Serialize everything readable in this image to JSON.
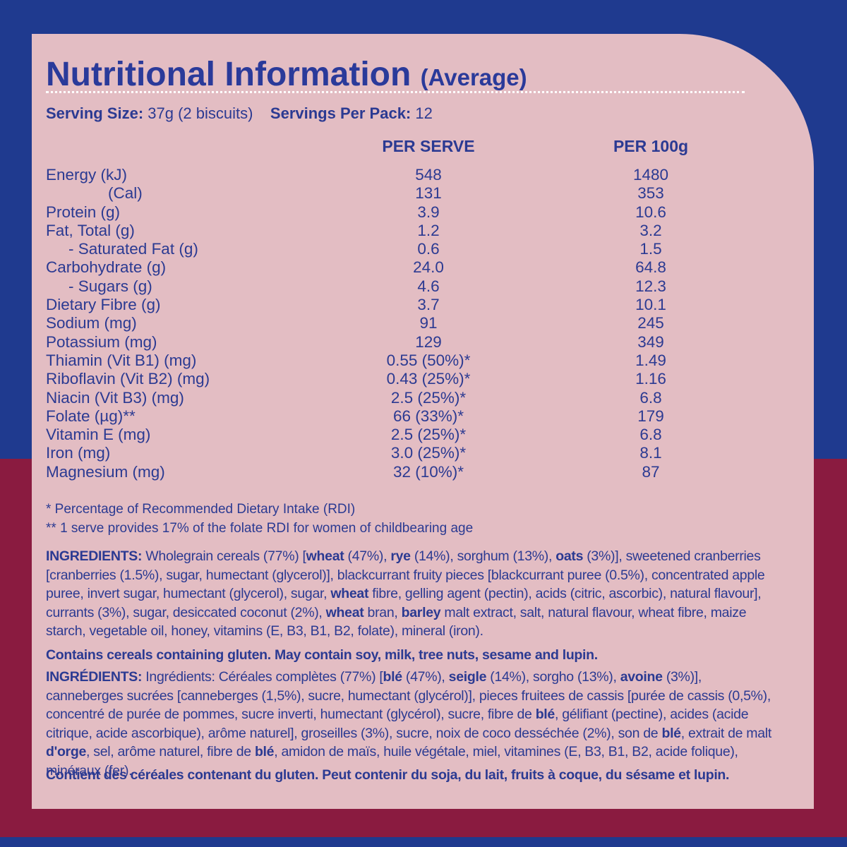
{
  "title": {
    "main": "Nutritional Information",
    "sub": "(Average)"
  },
  "serving": {
    "size_label": "Serving Size:",
    "size_value": "37g (2 biscuits)",
    "pack_label": "Servings Per Pack:",
    "pack_value": "12"
  },
  "columns": {
    "per_serve": "PER SERVE",
    "per_100g": "PER 100g"
  },
  "rows": [
    {
      "label": "Energy (kJ)",
      "serve": "548",
      "per100": "1480"
    },
    {
      "label": "(Cal)",
      "serve": "131",
      "per100": "353"
    },
    {
      "label": "Protein (g)",
      "serve": "3.9",
      "per100": "10.6"
    },
    {
      "label": "Fat, Total (g)",
      "serve": "1.2",
      "per100": "3.2"
    },
    {
      "label": "- Saturated Fat (g)",
      "serve": "0.6",
      "per100": "1.5"
    },
    {
      "label": "Carbohydrate (g)",
      "serve": "24.0",
      "per100": "64.8"
    },
    {
      "label": "- Sugars (g)",
      "serve": "4.6",
      "per100": "12.3"
    },
    {
      "label": "Dietary Fibre (g)",
      "serve": "3.7",
      "per100": "10.1"
    },
    {
      "label": "Sodium (mg)",
      "serve": "91",
      "per100": "245"
    },
    {
      "label": "Potassium (mg)",
      "serve": "129",
      "per100": "349"
    },
    {
      "label": "Thiamin (Vit B1) (mg)",
      "serve": "0.55 (50%)*",
      "per100": "1.49"
    },
    {
      "label": "Riboflavin (Vit B2) (mg)",
      "serve": "0.43 (25%)*",
      "per100": "1.16"
    },
    {
      "label": "Niacin (Vit B3) (mg)",
      "serve": "2.5 (25%)*",
      "per100": "6.8"
    },
    {
      "label": "Folate (µg)**",
      "serve": "66 (33%)*",
      "per100": "179"
    },
    {
      "label": "Vitamin E (mg)",
      "serve": "2.5 (25%)*",
      "per100": "6.8"
    },
    {
      "label": "Iron (mg)",
      "serve": "3.0 (25%)*",
      "per100": "8.1"
    },
    {
      "label": "Magnesium (mg)",
      "serve": "32 (10%)*",
      "per100": "87"
    }
  ],
  "footnotes": [
    "* Percentage of Recommended Dietary Intake (RDI)",
    "** 1 serve provides 17% of the folate RDI for women of childbearing age"
  ],
  "ingredients_en": {
    "label": "INGREDIENTS:",
    "t1": " Wholegrain cereals (77%) [",
    "b1": "wheat",
    "t2": " (47%), ",
    "b2": "rye",
    "t3": " (14%), sorghum (13%), ",
    "b3": "oats",
    "t4": " (3%)], sweetened cranberries [cranberries (1.5%), sugar, humectant (glycerol)], blackcurrant fruity pieces [blackcurrant puree (0.5%), concentrated apple puree, invert sugar, humectant (glycerol), sugar, ",
    "b4": "wheat",
    "t5": " fibre, gelling agent (pectin), acids (citric, ascorbic), natural flavour], currants (3%), sugar, desiccated coconut (2%), ",
    "b5": "wheat",
    "t6": " bran, ",
    "b6": "barley",
    "t7": " malt extract, salt, natural flavour, wheat fibre, maize starch, vegetable oil, honey, vitamins (E, B3, B1, B2, folate), mineral (iron)."
  },
  "allergen_en": "Contains cereals containing gluten. May contain soy, milk, tree nuts, sesame and lupin.",
  "ingredients_fr": {
    "label": "INGRÉDIENTS:",
    "t1": " Ingrédients: Céréales complètes (77%) [",
    "b1": "blé",
    "t2": " (47%), ",
    "b2": "seigle",
    "t3": " (14%), sorgho (13%), ",
    "b3": "avoine",
    "t4": " (3%)], canneberges sucrées [canneberges (1,5%), sucre, humectant (glycérol)], pieces fruitees de cassis [purée de cassis (0,5%), concentré de purée de pommes,  sucre inverti, humectant (glycérol), sucre, fibre de ",
    "b4": "blé",
    "t5": ", gélifiant (pectine), acides (acide citrique, acide ascorbique), arôme naturel], groseilles (3%), sucre, noix de coco desséchée (2%), son de ",
    "b5": "blé",
    "t6": ", extrait de malt ",
    "b6": "d'orge",
    "t7": ", sel, arôme naturel, fibre de ",
    "b7": "blé",
    "t8": ", amidon de maïs, huile végétale, miel, vitamines (E, B3, B1, B2, acide folique), minéraux (fer)."
  },
  "allergen_fr": "Contient des céréales contenant du gluten. Peut contenir du soja, du lait, fruits à coque, du sésame et lupin.",
  "colors": {
    "blue": "#1f3a8f",
    "red": "#8a1b40",
    "panel": "#e3bdc3",
    "text": "#2b3a92"
  }
}
